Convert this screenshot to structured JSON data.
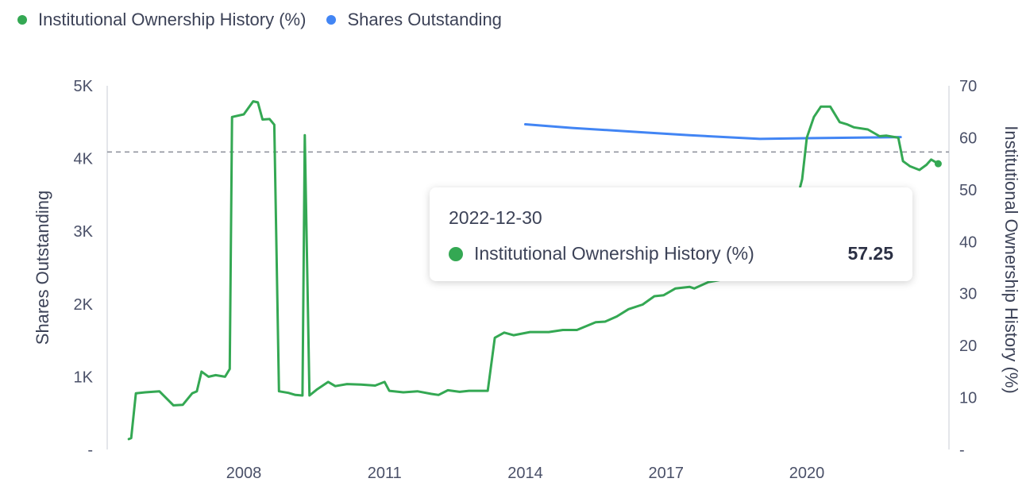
{
  "legend": {
    "items": [
      {
        "label": "Institutional Ownership History (%)",
        "color": "#34a853"
      },
      {
        "label": "Shares Outstanding",
        "color": "#4285f4"
      }
    ]
  },
  "tooltip": {
    "date": "2022-12-30",
    "series": "Institutional Ownership History (%)",
    "value": "57.25",
    "color": "#34a853"
  },
  "chart_data": {
    "type": "line",
    "x_tick_labels": [
      "2008",
      "2011",
      "2014",
      "2017",
      "2020"
    ],
    "xlim": [
      2005.5,
      2023.5
    ],
    "left_axis": {
      "label": "Shares Outstanding",
      "tick_labels": [
        "-",
        "1K",
        "2K",
        "3K",
        "4K",
        "5K"
      ],
      "ylim": [
        0,
        5000
      ]
    },
    "right_axis": {
      "label": "Institutional Ownership History (%)",
      "tick_labels": [
        "-",
        "10",
        "20",
        "30",
        "40",
        "50",
        "60",
        "70"
      ],
      "ylim": [
        0,
        70
      ]
    },
    "reference_line": {
      "axis": "right",
      "value": 57.25
    },
    "series": [
      {
        "name": "Shares Outstanding",
        "axis": "left",
        "color": "#4285f4",
        "points": [
          [
            2014.0,
            4470
          ],
          [
            2015.0,
            4420
          ],
          [
            2016.5,
            4360
          ],
          [
            2017.5,
            4320
          ],
          [
            2019.0,
            4270
          ],
          [
            2020.0,
            4280
          ],
          [
            2021.5,
            4290
          ],
          [
            2022.0,
            4295
          ]
        ]
      },
      {
        "name": "Institutional Ownership History (%)",
        "axis": "right",
        "color": "#34a853",
        "points": [
          [
            2005.55,
            2.0
          ],
          [
            2005.6,
            2.2
          ],
          [
            2005.7,
            10.8
          ],
          [
            2005.9,
            11.0
          ],
          [
            2006.2,
            11.2
          ],
          [
            2006.5,
            8.5
          ],
          [
            2006.7,
            8.6
          ],
          [
            2006.9,
            10.8
          ],
          [
            2007.0,
            11.2
          ],
          [
            2007.1,
            15.0
          ],
          [
            2007.25,
            14.0
          ],
          [
            2007.4,
            14.3
          ],
          [
            2007.6,
            14.0
          ],
          [
            2007.7,
            15.5
          ],
          [
            2007.75,
            64.0
          ],
          [
            2008.0,
            64.5
          ],
          [
            2008.2,
            67.0
          ],
          [
            2008.3,
            66.8
          ],
          [
            2008.4,
            63.5
          ],
          [
            2008.55,
            63.6
          ],
          [
            2008.65,
            62.5
          ],
          [
            2008.75,
            11.2
          ],
          [
            2008.95,
            10.9
          ],
          [
            2009.1,
            10.5
          ],
          [
            2009.25,
            10.4
          ],
          [
            2009.3,
            60.5
          ],
          [
            2009.4,
            10.4
          ],
          [
            2009.55,
            11.5
          ],
          [
            2009.8,
            13.0
          ],
          [
            2009.95,
            12.2
          ],
          [
            2010.2,
            12.6
          ],
          [
            2010.5,
            12.5
          ],
          [
            2010.8,
            12.3
          ],
          [
            2011.0,
            13.0
          ],
          [
            2011.1,
            11.3
          ],
          [
            2011.4,
            11.0
          ],
          [
            2011.7,
            11.2
          ],
          [
            2012.0,
            10.7
          ],
          [
            2012.15,
            10.5
          ],
          [
            2012.35,
            11.4
          ],
          [
            2012.6,
            11.1
          ],
          [
            2012.8,
            11.3
          ],
          [
            2013.05,
            11.3
          ],
          [
            2013.2,
            11.3
          ],
          [
            2013.35,
            21.5
          ],
          [
            2013.55,
            22.5
          ],
          [
            2013.75,
            22.0
          ],
          [
            2014.1,
            22.6
          ],
          [
            2014.5,
            22.6
          ],
          [
            2014.8,
            23.0
          ],
          [
            2015.1,
            23.0
          ],
          [
            2015.5,
            24.5
          ],
          [
            2015.7,
            24.6
          ],
          [
            2015.95,
            25.6
          ],
          [
            2016.2,
            27.0
          ],
          [
            2016.5,
            27.9
          ],
          [
            2016.75,
            29.5
          ],
          [
            2016.95,
            29.7
          ],
          [
            2017.2,
            31.0
          ],
          [
            2017.5,
            31.3
          ],
          [
            2017.6,
            31.0
          ],
          [
            2017.9,
            32.2
          ],
          [
            2018.25,
            32.8
          ],
          [
            2018.9,
            33.0
          ],
          [
            2019.55,
            39.0
          ],
          [
            2019.7,
            45.0
          ],
          [
            2019.9,
            52.0
          ],
          [
            2020.0,
            60.0
          ],
          [
            2020.15,
            64.0
          ],
          [
            2020.3,
            66.0
          ],
          [
            2020.5,
            66.0
          ],
          [
            2020.7,
            63.0
          ],
          [
            2020.85,
            62.6
          ],
          [
            2021.0,
            62.0
          ],
          [
            2021.3,
            61.6
          ],
          [
            2021.55,
            60.3
          ],
          [
            2021.7,
            60.4
          ],
          [
            2021.95,
            60.0
          ],
          [
            2022.05,
            55.5
          ],
          [
            2022.2,
            54.5
          ],
          [
            2022.4,
            53.8
          ],
          [
            2022.55,
            54.8
          ],
          [
            2022.65,
            55.8
          ],
          [
            2022.8,
            55.0
          ],
          [
            2023.15,
            55.6
          ],
          [
            2023.35,
            56.5
          ],
          [
            2023.5,
            58.3
          ],
          [
            2023.7,
            57.7
          ],
          [
            2023.95,
            57.4
          ],
          [
            2024.2,
            57.25
          ]
        ]
      }
    ]
  }
}
